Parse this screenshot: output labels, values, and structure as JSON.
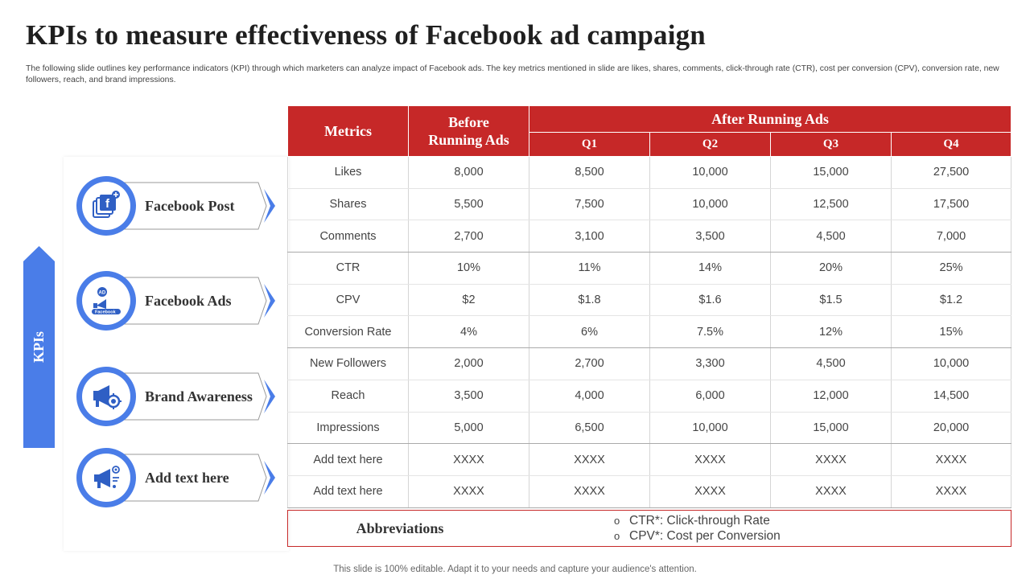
{
  "title": "KPIs to measure effectiveness of Facebook ad campaign",
  "subtitle": "The following slide outlines key performance indicators (KPI) through which marketers can analyze impact of Facebook ads. The key metrics mentioned in slide are likes, shares, comments, click-through rate (CTR), cost per conversion (CPV), conversion rate, new followers, reach, and brand impressions.",
  "kpi_label": "KPIs",
  "kpi_items": [
    {
      "label": "Facebook Post",
      "icon": "facebook-post-icon"
    },
    {
      "label": "Facebook Ads",
      "icon": "facebook-ads-icon"
    },
    {
      "label": "Brand Awareness",
      "icon": "brand-awareness-icon"
    },
    {
      "label": "Add text here",
      "icon": "megaphone-icon"
    }
  ],
  "table": {
    "header_metrics": "Metrics",
    "header_before_line1": "Before",
    "header_before_line2": "Running Ads",
    "header_after": "After Running Ads",
    "quarters": [
      "Q1",
      "Q2",
      "Q3",
      "Q4"
    ],
    "rows": [
      [
        "Likes",
        "8,000",
        "8,500",
        "10,000",
        "15,000",
        "27,500"
      ],
      [
        "Shares",
        "5,500",
        "7,500",
        "10,000",
        "12,500",
        "17,500"
      ],
      [
        "Comments",
        "2,700",
        "3,100",
        "3,500",
        "4,500",
        "7,000"
      ],
      [
        "CTR",
        "10%",
        "11%",
        "14%",
        "20%",
        "25%"
      ],
      [
        "CPV",
        "$2",
        "$1.8",
        "$1.6",
        "$1.5",
        "$1.2"
      ],
      [
        "Conversion Rate",
        "4%",
        "6%",
        "7.5%",
        "12%",
        "15%"
      ],
      [
        "New Followers",
        "2,000",
        "2,700",
        "3,300",
        "4,500",
        "10,000"
      ],
      [
        "Reach",
        "3,500",
        "4,000",
        "6,000",
        "12,000",
        "14,500"
      ],
      [
        "Impressions",
        "5,000",
        "6,500",
        "10,000",
        "15,000",
        "20,000"
      ],
      [
        "Add text here",
        "XXXX",
        "XXXX",
        "XXXX",
        "XXXX",
        "XXXX"
      ],
      [
        "Add text here",
        "XXXX",
        "XXXX",
        "XXXX",
        "XXXX",
        "XXXX"
      ]
    ]
  },
  "abbreviations": {
    "title": "Abbreviations",
    "items": [
      "CTR*: Click-through Rate",
      "CPV*: Cost per Conversion"
    ]
  },
  "footer": "This slide is 100% editable. Adapt it to your needs and capture your audience's attention.",
  "colors": {
    "accent_red": "#c62828",
    "accent_blue": "#4a7de8"
  }
}
